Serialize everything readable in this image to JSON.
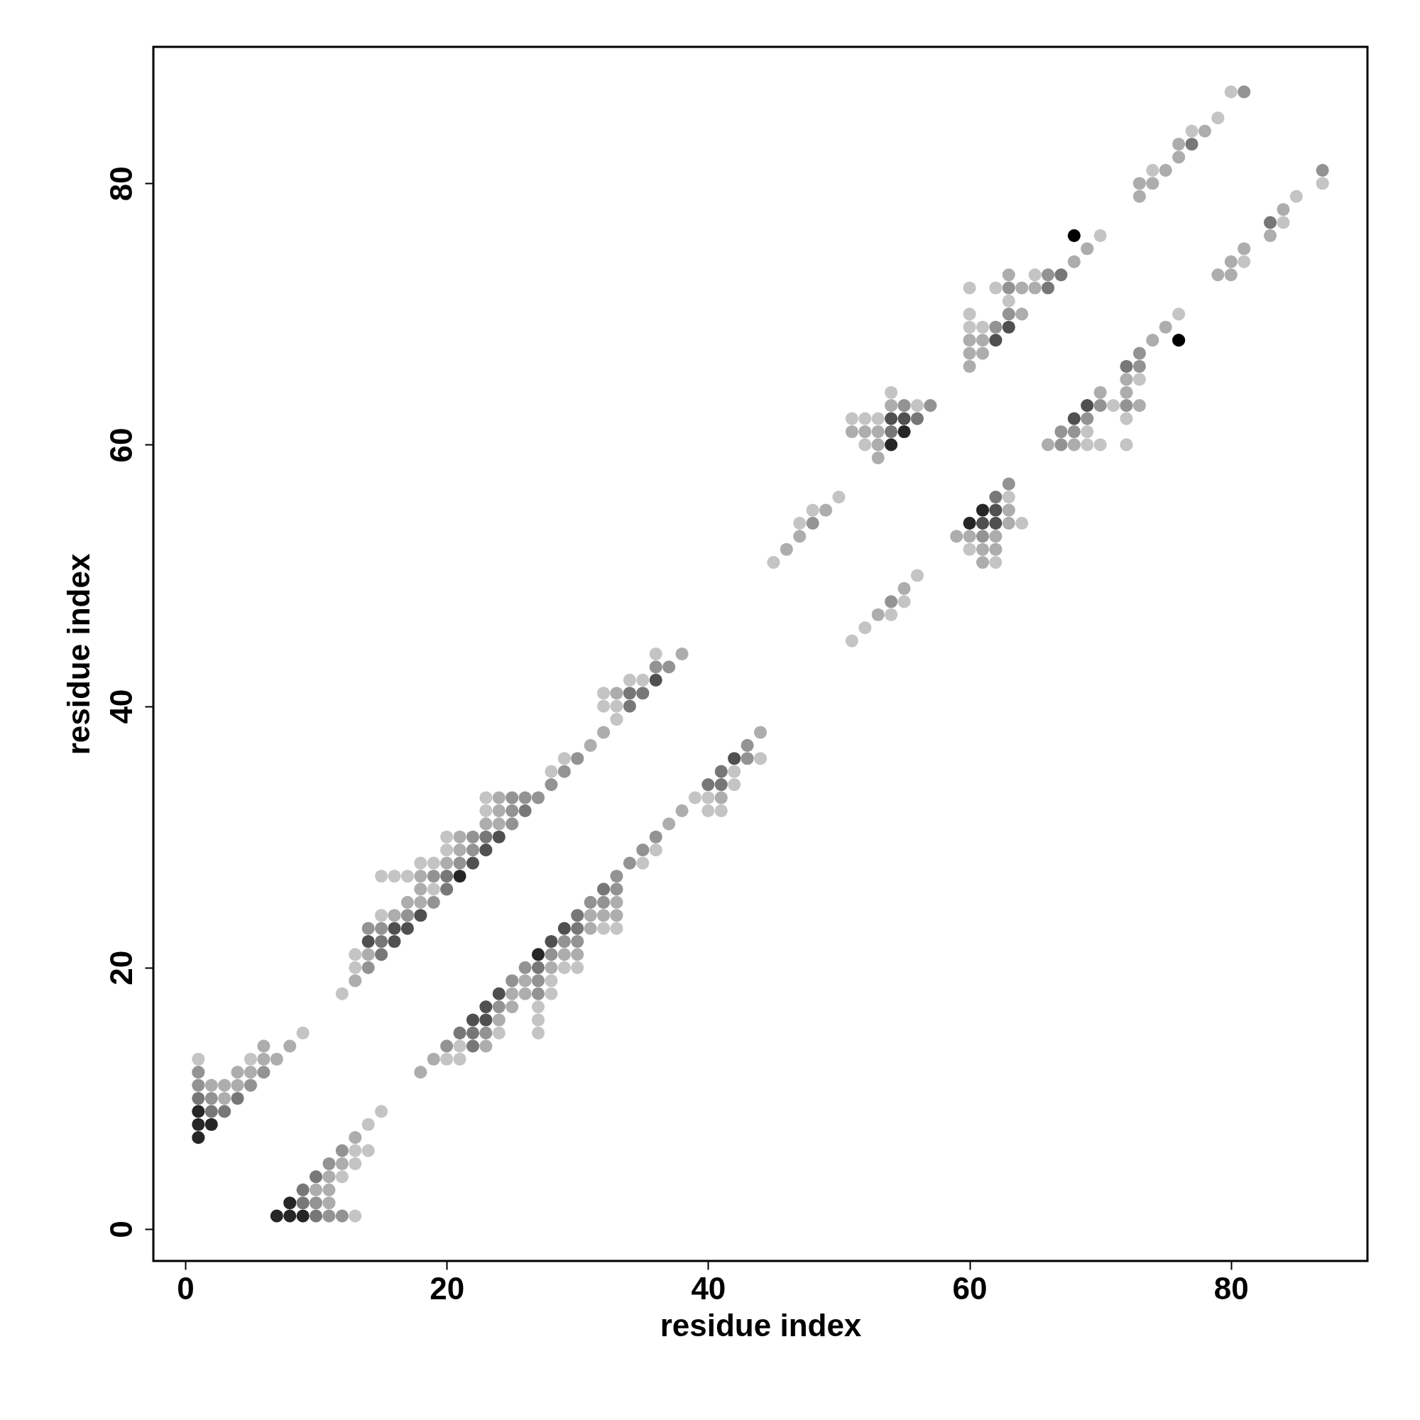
{
  "chart_data": {
    "type": "scatter",
    "xlabel": "residue index",
    "ylabel": "residue index",
    "xlim": [
      -2.44,
      90.44
    ],
    "ylim": [
      -2.44,
      90.44
    ],
    "xticks": [
      0,
      20,
      40,
      60,
      80
    ],
    "yticks": [
      0,
      20,
      40,
      60,
      80
    ],
    "marker": "circle",
    "series": [
      {
        "color": "#c4c4c4",
        "x": [
          1,
          5,
          9,
          13,
          12,
          13,
          13,
          14,
          14,
          15,
          12,
          13,
          13,
          15,
          19,
          15,
          16,
          17,
          18,
          19,
          20,
          20,
          23,
          23,
          28,
          29,
          33,
          32,
          33,
          32,
          34,
          35,
          36,
          20,
          21,
          21,
          24,
          27,
          27,
          27,
          28,
          28,
          29,
          30,
          32,
          33,
          35,
          36,
          40,
          41,
          39,
          40,
          42,
          42,
          44,
          45,
          47,
          48,
          50,
          51,
          52,
          53,
          52,
          56,
          54,
          51,
          52,
          54,
          55,
          56,
          60,
          62,
          64,
          63,
          60,
          61,
          60,
          63,
          60,
          62,
          65,
          70,
          69,
          70,
          72,
          69,
          72,
          71,
          73,
          76,
          74,
          77,
          79,
          80,
          81,
          84,
          85,
          87
        ],
        "values": [
          13,
          13,
          15,
          1,
          4,
          5,
          6,
          6,
          8,
          9,
          18,
          20,
          21,
          24,
          26,
          27,
          27,
          27,
          28,
          28,
          29,
          30,
          32,
          33,
          35,
          36,
          39,
          40,
          40,
          41,
          42,
          42,
          44,
          13,
          13,
          14,
          15,
          15,
          16,
          17,
          18,
          19,
          20,
          20,
          23,
          23,
          28,
          29,
          32,
          32,
          33,
          33,
          34,
          35,
          36,
          51,
          54,
          55,
          56,
          62,
          62,
          62,
          60,
          63,
          64,
          45,
          46,
          47,
          48,
          50,
          52,
          51,
          54,
          56,
          69,
          69,
          70,
          71,
          72,
          72,
          73,
          76,
          60,
          60,
          60,
          61,
          62,
          63,
          65,
          70,
          81,
          84,
          85,
          87,
          74,
          77,
          79,
          80
        ]
      },
      {
        "color": "#adadad",
        "x": [
          2,
          3,
          3,
          4,
          4,
          5,
          6,
          6,
          7,
          8,
          11,
          10,
          11,
          11,
          12,
          13,
          13,
          14,
          16,
          17,
          18,
          18,
          18,
          20,
          21,
          21,
          23,
          24,
          24,
          24,
          31,
          32,
          33,
          38,
          18,
          19,
          23,
          24,
          25,
          25,
          26,
          26,
          28,
          29,
          30,
          31,
          31,
          32,
          33,
          33,
          37,
          38,
          41,
          44,
          46,
          47,
          49,
          51,
          52,
          53,
          53,
          53,
          54,
          53,
          55,
          59,
          60,
          62,
          61,
          62,
          61,
          63,
          63,
          60,
          60,
          61,
          60,
          61,
          64,
          64,
          65,
          63,
          68,
          69,
          66,
          68,
          73,
          70,
          72,
          72,
          74,
          75,
          73,
          73,
          74,
          75,
          76,
          76,
          78,
          79,
          80,
          80,
          81,
          83,
          84
        ],
        "values": [
          11,
          10,
          11,
          11,
          12,
          12,
          13,
          14,
          13,
          14,
          2,
          3,
          3,
          4,
          5,
          7,
          19,
          21,
          24,
          25,
          25,
          26,
          27,
          28,
          29,
          30,
          31,
          31,
          32,
          33,
          37,
          38,
          41,
          44,
          12,
          13,
          14,
          16,
          17,
          18,
          18,
          19,
          20,
          21,
          21,
          23,
          24,
          24,
          24,
          25,
          31,
          32,
          33,
          38,
          52,
          53,
          55,
          61,
          61,
          61,
          60,
          59,
          63,
          47,
          49,
          53,
          53,
          53,
          52,
          52,
          51,
          54,
          55,
          66,
          67,
          67,
          68,
          68,
          70,
          72,
          72,
          73,
          74,
          75,
          60,
          60,
          63,
          64,
          64,
          65,
          68,
          69,
          79,
          80,
          80,
          81,
          82,
          83,
          84,
          73,
          73,
          74,
          75,
          76,
          78
        ]
      },
      {
        "color": "#939393",
        "x": [
          1,
          1,
          2,
          5,
          6,
          11,
          12,
          10,
          11,
          12,
          14,
          14,
          15,
          17,
          19,
          19,
          21,
          22,
          22,
          25,
          25,
          25,
          26,
          27,
          28,
          29,
          30,
          36,
          37,
          20,
          23,
          24,
          27,
          25,
          27,
          26,
          28,
          29,
          30,
          31,
          32,
          33,
          33,
          34,
          35,
          36,
          43,
          43,
          48,
          55,
          57,
          54,
          61,
          63,
          62,
          63,
          63,
          66,
          67,
          67,
          68,
          69,
          70,
          72,
          73,
          73,
          81,
          87
        ],
        "values": [
          11,
          12,
          10,
          11,
          12,
          1,
          1,
          2,
          5,
          6,
          20,
          23,
          23,
          24,
          25,
          27,
          28,
          29,
          30,
          31,
          32,
          33,
          33,
          33,
          34,
          35,
          36,
          43,
          43,
          14,
          15,
          17,
          18,
          19,
          19,
          20,
          21,
          22,
          22,
          25,
          25,
          26,
          27,
          28,
          29,
          30,
          36,
          37,
          54,
          63,
          63,
          48,
          53,
          57,
          69,
          70,
          72,
          73,
          60,
          61,
          61,
          62,
          63,
          63,
          66,
          67,
          87,
          81
        ]
      },
      {
        "color": "#777777",
        "x": [
          1,
          2,
          3,
          4,
          10,
          9,
          9,
          10,
          15,
          15,
          20,
          20,
          23,
          26,
          34,
          34,
          35,
          21,
          22,
          22,
          27,
          30,
          30,
          32,
          40,
          41,
          41,
          54,
          56,
          62,
          66,
          67,
          72,
          77,
          83
        ],
        "values": [
          10,
          9,
          9,
          10,
          1,
          2,
          3,
          4,
          21,
          22,
          26,
          27,
          30,
          32,
          40,
          41,
          41,
          15,
          15,
          14,
          20,
          23,
          24,
          26,
          34,
          34,
          35,
          61,
          62,
          56,
          72,
          73,
          66,
          83,
          77
        ]
      },
      {
        "color": "#505050",
        "x": [
          14,
          16,
          16,
          17,
          18,
          22,
          23,
          24,
          36,
          22,
          23,
          23,
          24,
          28,
          29,
          42,
          54,
          55,
          61,
          62,
          62,
          62,
          63,
          68,
          69
        ],
        "values": [
          22,
          22,
          23,
          23,
          24,
          28,
          29,
          30,
          42,
          16,
          16,
          17,
          18,
          22,
          23,
          36,
          62,
          62,
          54,
          54,
          55,
          68,
          69,
          62,
          63
        ]
      },
      {
        "color": "#262626",
        "x": [
          1,
          1,
          1,
          2,
          7,
          8,
          9,
          8,
          21,
          27,
          55,
          54,
          60,
          61
        ],
        "values": [
          7,
          8,
          9,
          8,
          1,
          1,
          1,
          2,
          27,
          21,
          61,
          60,
          54,
          55
        ]
      },
      {
        "color": "#000000",
        "x": [
          68,
          76
        ],
        "values": [
          76,
          68
        ]
      }
    ]
  }
}
